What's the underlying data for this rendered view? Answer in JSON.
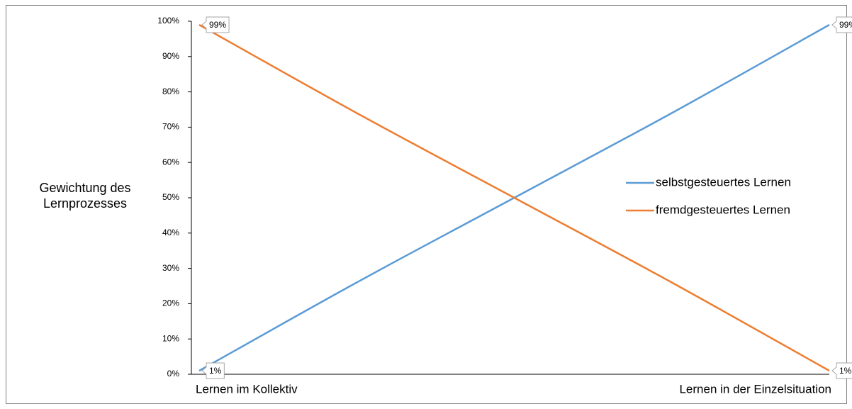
{
  "chart_data": {
    "type": "line",
    "y_label": "Gewichtung des Lernprozesses",
    "categories": [
      "Lernen im Kollektiv",
      null,
      null,
      null,
      "Lernen in der Einzelsituation"
    ],
    "series": [
      {
        "name": "selbstgesteuertes Lernen",
        "color": "#5b9bd5",
        "values": [
          1,
          26,
          50,
          74,
          99
        ],
        "value_labels": [
          "1%",
          null,
          null,
          null,
          "99%"
        ]
      },
      {
        "name": "fremdgesteuertes Lernen",
        "color": "#ed7d31",
        "values": [
          99,
          74,
          50,
          26,
          1
        ],
        "value_labels": [
          "99%",
          null,
          null,
          null,
          "1%"
        ]
      }
    ],
    "ylim": [
      0,
      100
    ],
    "yticks": [
      {
        "value": 0,
        "label": "0%"
      },
      {
        "value": 10,
        "label": "10%"
      },
      {
        "value": 20,
        "label": "20%"
      },
      {
        "value": 30,
        "label": "30%"
      },
      {
        "value": 40,
        "label": "40%"
      },
      {
        "value": 50,
        "label": "50%"
      },
      {
        "value": 60,
        "label": "60%"
      },
      {
        "value": 70,
        "label": "70%"
      },
      {
        "value": 80,
        "label": "80%"
      },
      {
        "value": 90,
        "label": "90%"
      },
      {
        "value": 100,
        "label": "100%"
      }
    ],
    "legend": "right",
    "smooth": true
  }
}
